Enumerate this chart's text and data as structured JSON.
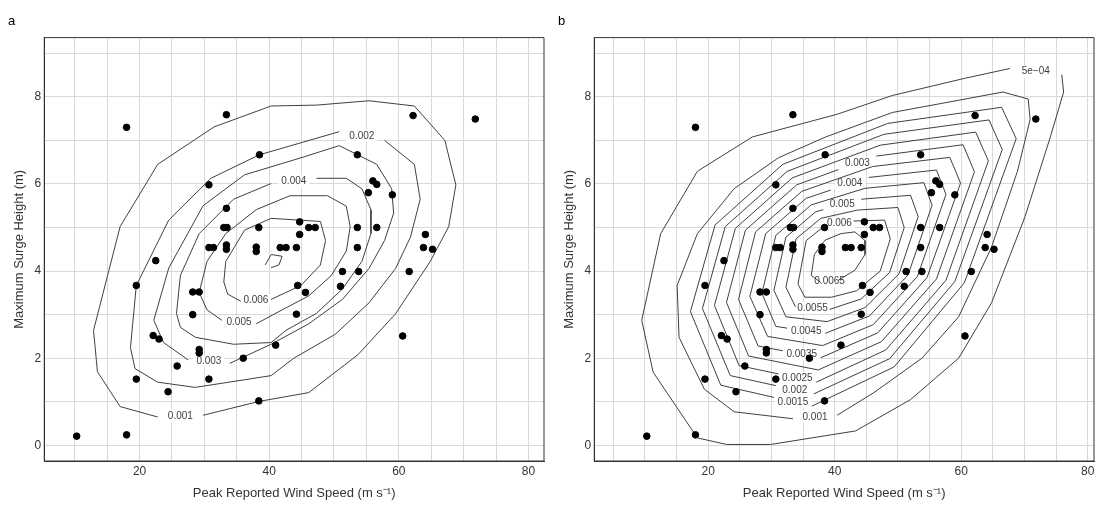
{
  "chart_data": [
    {
      "type": "scatter",
      "title": "a",
      "xlabel": "Peak Reported Wind Speed (m s⁻¹)",
      "ylabel": "Maximum Surge Height (m)",
      "xlim": [
        5.3,
        82.4
      ],
      "ylim": [
        -0.36,
        9.36
      ],
      "xticks": [
        {
          "value": 10,
          "label": null
        },
        {
          "value": 15,
          "label": null
        },
        20,
        {
          "value": 25,
          "label": null
        },
        {
          "value": 30,
          "label": null
        },
        {
          "value": 35,
          "label": null
        },
        40,
        {
          "value": 45,
          "label": null
        },
        {
          "value": 50,
          "label": null
        },
        {
          "value": 55,
          "label": null
        },
        60,
        {
          "value": 65,
          "label": null
        },
        {
          "value": 70,
          "label": null
        },
        {
          "value": 75,
          "label": null
        },
        80
      ],
      "yticks": [
        0,
        {
          "value": 1,
          "label": null
        },
        2,
        {
          "value": 3,
          "label": null
        },
        4,
        {
          "value": 5,
          "label": null
        },
        6,
        {
          "value": 7,
          "label": null
        },
        8,
        {
          "value": 9,
          "label": null
        }
      ],
      "grid": true,
      "series": [
        {
          "type": "scatter",
          "marker": "circle",
          "color": "#000000",
          "x": [
            18.0,
            33.4,
            38.5,
            30.7,
            33.4,
            33.0,
            33.5,
            38.4,
            44.7,
            46.1,
            47.1,
            44.7,
            30.7,
            31.4,
            33.4,
            33.4,
            38.0,
            38.0,
            41.7,
            42.6,
            44.2,
            22.5,
            19.5,
            44.4,
            45.6,
            28.2,
            29.2,
            28.2,
            44.2,
            22.1,
            23.0,
            29.2,
            29.2,
            41.0,
            36.0,
            25.8,
            19.5,
            30.7,
            24.4,
            38.4,
            10.3,
            18.0,
            62.2,
            71.8,
            53.6,
            56.0,
            56.6,
            55.3,
            59.0,
            53.6,
            56.6,
            53.6,
            51.3,
            53.8,
            51.0,
            64.1,
            63.8,
            65.2,
            61.6,
            60.6
          ],
          "values": [
            7.3,
            7.59,
            6.67,
            5.98,
            5.44,
            5.0,
            5.0,
            5.0,
            5.13,
            5.0,
            5.0,
            4.84,
            4.54,
            4.54,
            4.6,
            4.5,
            4.55,
            4.45,
            4.54,
            4.54,
            4.54,
            4.24,
            3.67,
            3.67,
            3.51,
            3.52,
            3.52,
            3.0,
            3.01,
            2.52,
            2.44,
            2.2,
            2.12,
            2.3,
            2.0,
            1.82,
            1.52,
            1.52,
            1.23,
            1.02,
            0.21,
            0.24,
            7.57,
            7.49,
            6.67,
            6.07,
            5.99,
            5.8,
            5.75,
            5.0,
            5.0,
            4.54,
            3.99,
            3.99,
            3.65,
            4.84,
            4.54,
            4.5,
            3.99,
            2.51
          ]
        },
        {
          "type": "line",
          "name": "0.001",
          "color": "#404040",
          "x": [
            22.8,
            17.0,
            13.5,
            12.9,
            17.0,
            22.8,
            31.5,
            40.3,
            47.3,
            55.4,
            62.4,
            67.1,
            68.8,
            67.7,
            64.8,
            59.5,
            53.7,
            46.1,
            38.5,
            29.8
          ],
          "values": [
            0.65,
            0.89,
            1.69,
            2.64,
            5.02,
            6.45,
            7.31,
            7.79,
            7.81,
            7.91,
            7.79,
            7.0,
            5.98,
            5.02,
            4.21,
            3.02,
            2.08,
            1.21,
            1.01,
            0.69
          ]
        },
        {
          "type": "line",
          "name": "0.002",
          "color": "#404040",
          "x": [
            57.8,
            62.4,
            63.3,
            61.8,
            59.5,
            55.4,
            50.2,
            43.8,
            40.3,
            28.6,
            22.8,
            19.3,
            18.6,
            19.5,
            24.5,
            31.0,
            38.5,
            50.8
          ],
          "values": [
            7.0,
            6.45,
            5.65,
            4.78,
            4.06,
            3.27,
            2.55,
            2.0,
            1.6,
            1.33,
            1.45,
            1.76,
            2.24,
            3.67,
            5.17,
            6.13,
            6.67,
            7.2
          ]
        },
        {
          "type": "line",
          "name": "0.003",
          "color": "#404040",
          "x": [
            27.5,
            23.7,
            22.2,
            24.5,
            29.8,
            36.2,
            44.9,
            50.8,
            56.6,
            58.9,
            59.2,
            57.8,
            55.4,
            51.3,
            46.1,
            40.3,
            33.9
          ],
          "values": [
            1.96,
            2.36,
            2.87,
            4.07,
            5.5,
            6.21,
            6.6,
            6.88,
            6.45,
            5.89,
            5.33,
            4.7,
            4.06,
            3.35,
            2.79,
            2.32,
            1.88
          ]
        },
        {
          "type": "line",
          "name": "0.004",
          "color": "#404040",
          "x": [
            47.3,
            51.9,
            54.3,
            55.7,
            55.7,
            54.3,
            51.3,
            47.3,
            42.6,
            40.3,
            34.5,
            28.6,
            26.3,
            25.7,
            26.3,
            29.2,
            34.5,
            40.3
          ],
          "values": [
            6.13,
            6.13,
            5.89,
            5.41,
            4.86,
            4.22,
            3.59,
            3.03,
            2.64,
            2.36,
            2.32,
            2.48,
            2.71,
            3.03,
            3.9,
            4.86,
            5.65,
            6.01
          ]
        },
        {
          "type": "line",
          "name": "0.005",
          "color": "#404040",
          "x": [
            32.7,
            30.4,
            29.2,
            30.4,
            33.3,
            38.0,
            43.2,
            49.0,
            51.9,
            52.5,
            51.9,
            49.6,
            46.1,
            42.0,
            38.0
          ],
          "values": [
            2.87,
            3.11,
            3.51,
            4.22,
            4.86,
            5.41,
            5.73,
            5.73,
            5.49,
            5.02,
            4.46,
            3.9,
            3.43,
            3.11,
            2.79
          ]
        },
        {
          "type": "line",
          "name": "0.006",
          "color": "#404040",
          "x": [
            35.6,
            33.6,
            33.0,
            33.3,
            36.2,
            40.3,
            47.9,
            48.7,
            47.9,
            44.9,
            40.3
          ],
          "values": [
            3.31,
            3.47,
            3.75,
            4.22,
            4.94,
            5.21,
            5.14,
            4.7,
            4.14,
            3.67,
            3.35
          ]
        },
        {
          "type": "line",
          "color": "#404040",
          "x": [
            39.4,
            40.3,
            42.0,
            41.5,
            40.3
          ],
          "values": [
            4.14,
            4.38,
            4.34,
            4.14,
            4.08
          ]
        }
      ]
    },
    {
      "type": "scatter",
      "title": "b",
      "xlabel": "Peak Reported Wind Speed (m s⁻¹)",
      "ylabel": "Maximum Surge Height (m)",
      "xlim": [
        2,
        81
      ],
      "ylim": [
        -0.36,
        9.36
      ],
      "xticks": [
        {
          "value": 5,
          "label": null
        },
        {
          "value": 10,
          "label": null
        },
        {
          "value": 15,
          "label": null
        },
        20,
        {
          "value": 25,
          "label": null
        },
        {
          "value": 30,
          "label": null
        },
        {
          "value": 35,
          "label": null
        },
        40,
        {
          "value": 45,
          "label": null
        },
        {
          "value": 50,
          "label": null
        },
        {
          "value": 55,
          "label": null
        },
        60,
        {
          "value": 65,
          "label": null
        },
        {
          "value": 70,
          "label": null
        },
        {
          "value": 75,
          "label": null
        },
        80
      ],
      "yticks": [
        0,
        {
          "value": 1,
          "label": null
        },
        2,
        {
          "value": 3,
          "label": null
        },
        4,
        {
          "value": 5,
          "label": null
        },
        6,
        {
          "value": 7,
          "label": null
        },
        8,
        {
          "value": 9,
          "label": null
        }
      ],
      "grid": true,
      "series": [
        {
          "type": "scatter",
          "marker": "circle",
          "color": "#000000",
          "x": [
            18.0,
            33.4,
            38.5,
            30.7,
            33.4,
            33.0,
            33.5,
            38.4,
            44.7,
            46.1,
            47.1,
            44.7,
            30.7,
            31.4,
            33.4,
            33.4,
            38.0,
            38.0,
            41.7,
            42.6,
            44.2,
            22.5,
            19.5,
            44.4,
            45.6,
            28.2,
            29.2,
            28.2,
            44.2,
            22.1,
            23.0,
            29.2,
            29.2,
            41.0,
            36.0,
            25.8,
            19.5,
            30.7,
            24.4,
            38.4,
            10.3,
            18.0,
            62.2,
            71.8,
            53.6,
            56.0,
            56.6,
            55.3,
            59.0,
            53.6,
            56.6,
            53.6,
            51.3,
            53.8,
            51.0,
            64.1,
            63.8,
            65.2,
            61.6,
            60.6
          ],
          "values": [
            7.3,
            7.59,
            6.67,
            5.98,
            5.44,
            5.0,
            5.0,
            5.0,
            5.13,
            5.0,
            5.0,
            4.84,
            4.54,
            4.54,
            4.6,
            4.5,
            4.55,
            4.45,
            4.54,
            4.54,
            4.54,
            4.24,
            3.67,
            3.67,
            3.51,
            3.52,
            3.52,
            3.0,
            3.01,
            2.52,
            2.44,
            2.2,
            2.12,
            2.3,
            2.0,
            1.82,
            1.52,
            1.52,
            1.23,
            1.02,
            0.21,
            0.24,
            7.57,
            7.49,
            6.67,
            6.07,
            5.99,
            5.8,
            5.75,
            5.0,
            5.0,
            4.54,
            3.99,
            3.99,
            3.65,
            4.84,
            4.54,
            4.5,
            3.99,
            2.51
          ]
        },
        {
          "type": "line",
          "name": "5e−04",
          "color": "#404040",
          "x": [
            75.9,
            76.2,
            74.1,
            70.1,
            64.8,
            59.6,
            52.0,
            43.3,
            29.9,
            22.9,
            18.3,
            11.3,
            9.5,
            12.5,
            18.3,
            27.0,
            40.4,
            49.1,
            60.7,
            67.7
          ],
          "values": [
            8.51,
            8.11,
            7.08,
            5.25,
            3.27,
            2.0,
            1.05,
            0.33,
            0.02,
            0.02,
            0.17,
            1.68,
            2.87,
            4.86,
            6.29,
            7.08,
            7.6,
            8.03,
            8.43,
            8.65
          ]
        },
        {
          "type": "line",
          "name": "0.001",
          "color": "#404040",
          "x": [
            33.4,
            24.1,
            19.4,
            15.4,
            15.1,
            18.3,
            24.1,
            31.1,
            38.6,
            49.1,
            66.6,
            70.6,
            70.9,
            68.9,
            64.8,
            59.6,
            53.8,
            46.2,
            40.4
          ],
          "values": [
            0.61,
            0.77,
            1.29,
            2.48,
            3.67,
            4.86,
            5.89,
            6.6,
            7.08,
            7.64,
            8.11,
            7.95,
            7.48,
            6.29,
            4.55,
            2.95,
            2.0,
            1.21,
            0.69
          ]
        },
        {
          "type": "line",
          "name": "0.0015",
          "color": "#404040",
          "x": [
            30.4,
            22.0,
            17.2,
            21.1,
            31.8,
            48.4,
            66.4,
            68.7,
            60.5,
            49.4,
            36.4
          ],
          "values": [
            1.1,
            1.38,
            3.07,
            5.06,
            6.45,
            7.39,
            7.76,
            7.04,
            3.73,
            1.8,
            0.9
          ]
        },
        {
          "type": "line",
          "name": "0.002",
          "color": "#404040",
          "x": [
            30.7,
            23.5,
            19.1,
            22.7,
            32.5,
            47.8,
            64.4,
            66.5,
            59.0,
            48.7,
            36.7
          ],
          "values": [
            1.37,
            1.6,
            3.14,
            5.02,
            6.29,
            7.14,
            7.47,
            6.79,
            3.76,
            1.99,
            1.18
          ]
        },
        {
          "type": "line",
          "name": "0.0025",
          "color": "#404040",
          "x": [
            31.1,
            24.9,
            21.0,
            24.3,
            33.3,
            47.2,
            62.3,
            64.3,
            57.6,
            48.1,
            37.1
          ],
          "values": [
            1.64,
            1.83,
            3.21,
            4.98,
            6.14,
            6.89,
            7.19,
            6.53,
            3.79,
            2.19,
            1.45
          ]
        },
        {
          "type": "line",
          "name": "0.003",
          "color": "#404040",
          "x": [
            46.6,
            60.3,
            62.1,
            56.1,
            47.4,
            37.4,
            26.4,
            22.9,
            25.9,
            34.0,
            40.6
          ],
          "values": [
            6.64,
            6.9,
            6.28,
            3.82,
            2.38,
            1.73,
            2.05,
            3.28,
            4.94,
            5.98,
            6.33
          ]
        },
        {
          "type": "line",
          "name": "0.0035",
          "color": "#404040",
          "x": [
            31.8,
            27.9,
            24.8,
            27.5,
            34.8,
            46.0,
            58.2,
            59.9,
            54.6,
            46.8,
            37.8
          ],
          "values": [
            2.17,
            2.28,
            3.35,
            4.9,
            5.83,
            6.4,
            6.61,
            6.02,
            3.85,
            2.58,
            2.01
          ]
        },
        {
          "type": "line",
          "name": "0.004",
          "color": "#404040",
          "x": [
            45.4,
            56.1,
            57.6,
            53.1,
            46.1,
            38.1,
            29.4,
            26.6,
            29.1,
            35.5,
            39.4
          ],
          "values": [
            6.15,
            6.32,
            5.76,
            3.88,
            2.77,
            2.29,
            2.5,
            3.42,
            4.86,
            5.67,
            5.86
          ]
        },
        {
          "type": "line",
          "name": "0.0045",
          "color": "#404040",
          "x": [
            32.5,
            30.7,
            28.5,
            30.7,
            36.3,
            44.8,
            54.1,
            55.4,
            51.6,
            45.5,
            38.5
          ],
          "values": [
            2.69,
            2.73,
            3.49,
            4.82,
            5.52,
            5.9,
            6.03,
            5.51,
            3.91,
            2.97,
            2.57
          ]
        },
        {
          "type": "line",
          "name": "0.005",
          "color": "#404040",
          "x": [
            44.2,
            52.0,
            53.2,
            50.2,
            44.8,
            38.8,
            32.3,
            30.4,
            32.3,
            37.0,
            38.2
          ],
          "values": [
            5.65,
            5.74,
            5.25,
            3.94,
            3.16,
            2.84,
            2.95,
            3.56,
            4.78,
            5.36,
            5.41
          ]
        },
        {
          "type": "line",
          "name": "0.0055",
          "color": "#404040",
          "x": [
            33.8,
            32.3,
            33.9,
            37.8,
            43.6,
            50.0,
            51.0,
            48.7,
            44.2,
            39.2
          ],
          "values": [
            3.18,
            3.63,
            4.74,
            5.21,
            5.4,
            5.46,
            5.0,
            3.97,
            3.36,
            3.12
          ]
        },
        {
          "type": "line",
          "name": "0.006",
          "color": "#404040",
          "x": [
            43.0,
            47.9,
            48.8,
            47.2,
            43.5,
            39.5,
            35.3,
            34.2,
            35.5,
            38.5
          ],
          "values": [
            5.15,
            5.17,
            4.74,
            4.0,
            3.55,
            3.4,
            3.4,
            3.7,
            4.7,
            5.05
          ]
        },
        {
          "type": "line",
          "name": "0.0065",
          "color": "#404040",
          "x": [
            37.8,
            36.3,
            36.8,
            38.5,
            41.0,
            43.2,
            44.8,
            44.8,
            43.2,
            40.6
          ],
          "values": [
            3.74,
            3.9,
            4.38,
            4.71,
            4.86,
            4.9,
            4.7,
            4.38,
            4.02,
            3.79
          ]
        }
      ]
    }
  ]
}
